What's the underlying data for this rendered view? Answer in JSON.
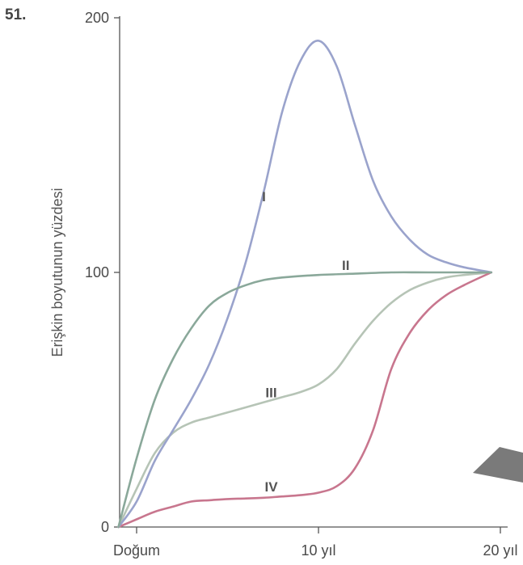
{
  "question_number": "51.",
  "decoration_color": "#7a7a7a",
  "chart_data": {
    "type": "line",
    "title": "",
    "xlabel": "",
    "ylabel": "Erişkin boyutunun yüzdesi",
    "xlim": [
      0,
      20
    ],
    "ylim": [
      0,
      200
    ],
    "x_ticks": [
      {
        "value": 0,
        "label": "Doğum"
      },
      {
        "value": 10,
        "label": "10 yıl"
      },
      {
        "value": 20,
        "label": "20 yıl"
      }
    ],
    "y_ticks": [
      {
        "value": 0,
        "label": "0"
      },
      {
        "value": 100,
        "label": "100"
      },
      {
        "value": 200,
        "label": "200"
      }
    ],
    "grid": false,
    "series": [
      {
        "name": "I",
        "color": "#9aa3cc",
        "label_at": [
          7,
          128
        ],
        "points": [
          [
            -1,
            0
          ],
          [
            0,
            10
          ],
          [
            1,
            26
          ],
          [
            2,
            38
          ],
          [
            3,
            50
          ],
          [
            4,
            64
          ],
          [
            5,
            82
          ],
          [
            6,
            104
          ],
          [
            7,
            132
          ],
          [
            8,
            163
          ],
          [
            9,
            183
          ],
          [
            10,
            191
          ],
          [
            11,
            181
          ],
          [
            12,
            158
          ],
          [
            13,
            136
          ],
          [
            14,
            122
          ],
          [
            15,
            113
          ],
          [
            16,
            107
          ],
          [
            17,
            104
          ],
          [
            18,
            102
          ],
          [
            19.5,
            100
          ]
        ]
      },
      {
        "name": "II",
        "color": "#8aa89a",
        "label_at": [
          11.5,
          101
        ],
        "points": [
          [
            -1,
            0
          ],
          [
            0,
            27
          ],
          [
            1,
            50
          ],
          [
            2,
            66
          ],
          [
            3,
            78
          ],
          [
            4,
            87
          ],
          [
            5,
            92
          ],
          [
            6,
            95
          ],
          [
            7,
            97
          ],
          [
            8,
            98
          ],
          [
            10,
            99
          ],
          [
            12,
            99.5
          ],
          [
            14,
            100
          ],
          [
            16,
            100
          ],
          [
            18,
            100
          ],
          [
            19.5,
            100
          ]
        ]
      },
      {
        "name": "III",
        "color": "#b6c4b6",
        "label_at": [
          7.4,
          51
        ],
        "points": [
          [
            -1,
            0
          ],
          [
            0,
            15
          ],
          [
            1,
            29
          ],
          [
            2,
            37
          ],
          [
            3,
            41
          ],
          [
            4,
            43
          ],
          [
            5,
            45
          ],
          [
            6,
            47
          ],
          [
            7,
            49
          ],
          [
            8,
            51
          ],
          [
            9,
            53
          ],
          [
            10,
            56
          ],
          [
            11,
            62
          ],
          [
            12,
            72
          ],
          [
            13,
            81
          ],
          [
            14,
            88
          ],
          [
            15,
            93
          ],
          [
            16,
            96
          ],
          [
            17,
            98
          ],
          [
            18,
            99
          ],
          [
            19.5,
            100
          ]
        ]
      },
      {
        "name": "IV",
        "color": "#c8768e",
        "label_at": [
          7.4,
          14
        ],
        "points": [
          [
            -1,
            0
          ],
          [
            0,
            3
          ],
          [
            1,
            6
          ],
          [
            2,
            8
          ],
          [
            3,
            10
          ],
          [
            4,
            10.5
          ],
          [
            5,
            11
          ],
          [
            6,
            11.2
          ],
          [
            7,
            11.5
          ],
          [
            8,
            12
          ],
          [
            9,
            12.5
          ],
          [
            10,
            13.5
          ],
          [
            11,
            16
          ],
          [
            12,
            23
          ],
          [
            13,
            38
          ],
          [
            14,
            62
          ],
          [
            15,
            76
          ],
          [
            16,
            85
          ],
          [
            17,
            91
          ],
          [
            18,
            95
          ],
          [
            19.5,
            100
          ]
        ]
      }
    ]
  }
}
